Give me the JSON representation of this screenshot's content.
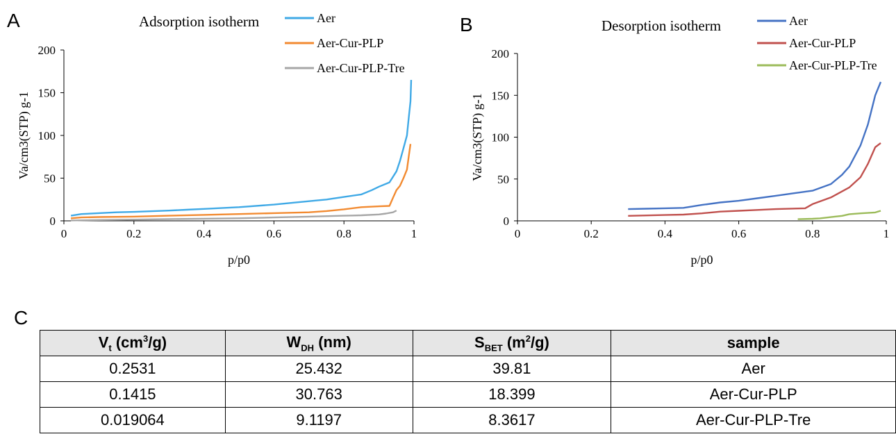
{
  "panels": {
    "a": "A",
    "b": "B",
    "c": "C"
  },
  "chart_data": [
    {
      "type": "line",
      "title": "Adsorption isotherm",
      "xlabel": "p/p0",
      "ylabel": "Va/cm3(STP) g-1",
      "xlim": [
        0,
        1
      ],
      "ylim": [
        0,
        200
      ],
      "xticks": [
        "0",
        "0.2",
        "0.4",
        "0.6",
        "0.8",
        "1"
      ],
      "yticks": [
        "0",
        "50",
        "100",
        "150",
        "200"
      ],
      "grid": false,
      "legend": "top-right",
      "series": [
        {
          "name": "Aer",
          "color": "#3fa9e6",
          "x": [
            0.02,
            0.05,
            0.1,
            0.15,
            0.2,
            0.3,
            0.35,
            0.4,
            0.5,
            0.6,
            0.7,
            0.75,
            0.8,
            0.85,
            0.88,
            0.9,
            0.93,
            0.95,
            0.96,
            0.97,
            0.98,
            0.985,
            0.99,
            0.992
          ],
          "y": [
            6,
            8,
            9,
            10,
            10.5,
            12,
            13,
            14,
            16,
            19,
            23,
            25,
            28,
            31,
            36,
            40,
            45,
            58,
            70,
            85,
            100,
            120,
            140,
            165
          ]
        },
        {
          "name": "Aer-Cur-PLP",
          "color": "#f28a30",
          "x": [
            0.02,
            0.05,
            0.1,
            0.2,
            0.3,
            0.4,
            0.5,
            0.6,
            0.7,
            0.75,
            0.8,
            0.85,
            0.9,
            0.93,
            0.94,
            0.95,
            0.96,
            0.97,
            0.98,
            0.985,
            0.99
          ],
          "y": [
            3,
            4,
            4.5,
            5,
            6,
            7,
            8,
            9,
            10,
            11.5,
            13.5,
            16,
            17,
            17.5,
            27,
            36,
            41,
            50,
            60,
            75,
            90
          ]
        },
        {
          "name": "Aer-Cur-PLP-Tre",
          "color": "#a6a6a6",
          "x": [
            0.02,
            0.1,
            0.2,
            0.3,
            0.4,
            0.5,
            0.6,
            0.7,
            0.8,
            0.85,
            0.9,
            0.92,
            0.94,
            0.95
          ],
          "y": [
            0.5,
            1,
            1.5,
            2,
            2.5,
            3,
            4,
            5,
            6,
            6.5,
            7.5,
            8.5,
            10,
            12
          ]
        }
      ]
    },
    {
      "type": "line",
      "title": "Desorption isotherm",
      "xlabel": "p/p0",
      "ylabel": "Va/cm3(STP) g-1",
      "xlim": [
        0,
        1
      ],
      "ylim": [
        0,
        200
      ],
      "xticks": [
        "0",
        "0.2",
        "0.4",
        "0.6",
        "0.8",
        "1"
      ],
      "yticks": [
        "0",
        "50",
        "100",
        "150",
        "200"
      ],
      "grid": false,
      "legend": "top-right",
      "series": [
        {
          "name": "Aer",
          "color": "#4472c4",
          "x": [
            0.3,
            0.35,
            0.4,
            0.45,
            0.5,
            0.55,
            0.6,
            0.65,
            0.7,
            0.75,
            0.8,
            0.85,
            0.88,
            0.9,
            0.93,
            0.95,
            0.97,
            0.985
          ],
          "y": [
            14,
            14.5,
            15,
            15.5,
            19,
            22,
            24,
            27,
            30,
            33,
            36,
            44,
            55,
            65,
            90,
            115,
            150,
            166
          ]
        },
        {
          "name": "Aer-Cur-PLP",
          "color": "#c0504d",
          "x": [
            0.3,
            0.35,
            0.4,
            0.45,
            0.5,
            0.55,
            0.6,
            0.65,
            0.7,
            0.78,
            0.8,
            0.85,
            0.9,
            0.93,
            0.95,
            0.97,
            0.985
          ],
          "y": [
            6,
            6.5,
            7,
            7.5,
            9,
            11,
            12,
            13,
            14,
            15,
            20,
            28,
            40,
            52,
            68,
            88,
            93
          ]
        },
        {
          "name": "Aer-Cur-PLP-Tre",
          "color": "#9bbb59",
          "x": [
            0.76,
            0.8,
            0.82,
            0.85,
            0.88,
            0.9,
            0.93,
            0.95,
            0.97,
            0.985
          ],
          "y": [
            2,
            2.5,
            3,
            4.5,
            6,
            8,
            9,
            9.5,
            10,
            12
          ]
        }
      ]
    },
    {
      "type": "table",
      "columns": [
        "Vt (cm3/g)",
        "WDH (nm)",
        "SBET (m2/g)",
        "sample"
      ],
      "rows": [
        [
          "0.2531",
          "25.432",
          "39.81",
          "Aer"
        ],
        [
          "0.1415",
          "30.763",
          "18.399",
          "Aer-Cur-PLP"
        ],
        [
          "0.019064",
          "9.1197",
          "8.3617",
          "Aer-Cur-PLP-Tre"
        ]
      ]
    }
  ],
  "table": {
    "headers": [
      {
        "main": "V",
        "sub": "t",
        "unit_pre": " (cm",
        "sup": "3",
        "unit_post": "/g)"
      },
      {
        "main": "W",
        "sub": "DH",
        "unit_pre": " (nm)",
        "sup": "",
        "unit_post": ""
      },
      {
        "main": "S",
        "sub": "BET",
        "unit_pre": " (m",
        "sup": "2",
        "unit_post": "/g)"
      },
      {
        "main": "sample",
        "sub": "",
        "unit_pre": "",
        "sup": "",
        "unit_post": ""
      }
    ],
    "rows": [
      [
        "0.2531",
        "25.432",
        "39.81",
        "Aer"
      ],
      [
        "0.1415",
        "30.763",
        "18.399",
        "Aer-Cur-PLP"
      ],
      [
        "0.019064",
        "9.1197",
        "8.3617",
        "Aer-Cur-PLP-Tre"
      ]
    ]
  }
}
